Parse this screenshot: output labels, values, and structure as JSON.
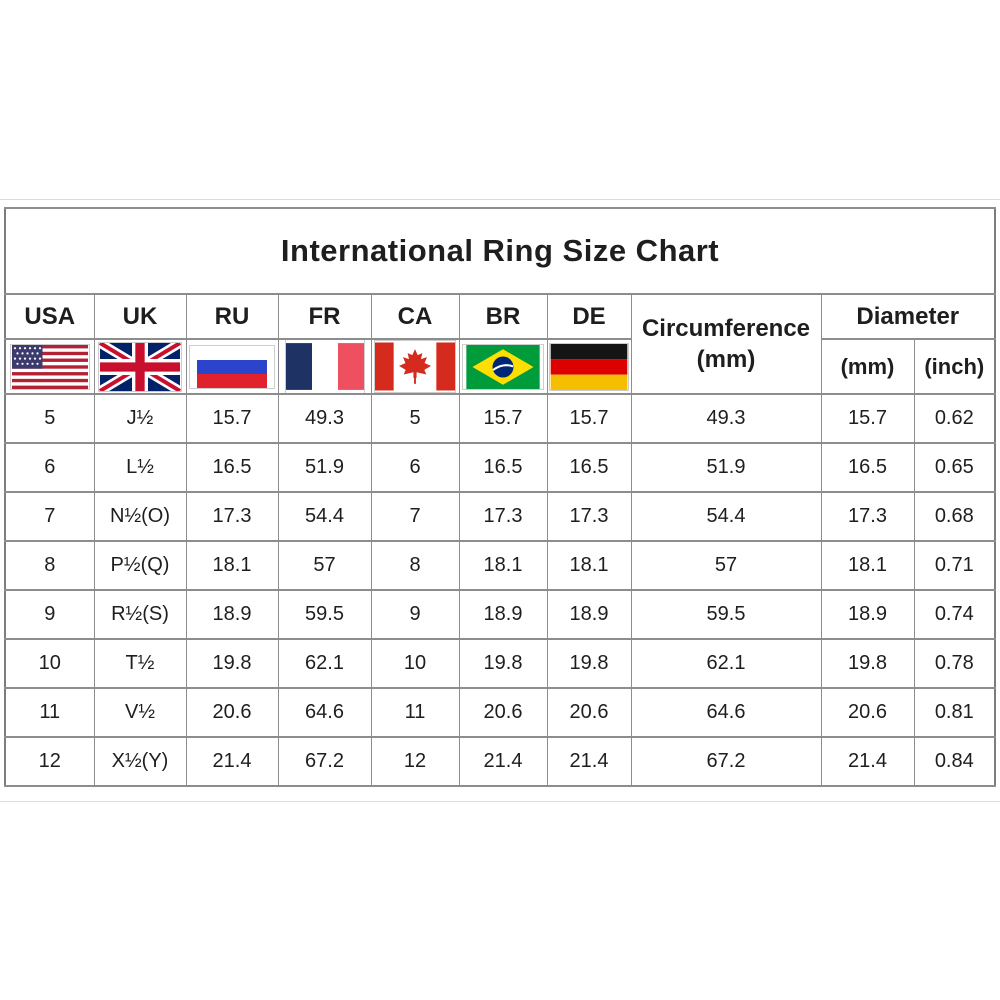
{
  "title": "International Ring Size Chart",
  "colors": {
    "background": "#ffffff",
    "table_border": "#8d8d8d",
    "text": "#1e1e1e"
  },
  "chart_data": {
    "type": "table",
    "title": "International Ring Size Chart",
    "header": {
      "countries": [
        {
          "code": "USA",
          "flag_icon": "usa-flag-icon"
        },
        {
          "code": "UK",
          "flag_icon": "uk-flag-icon"
        },
        {
          "code": "RU",
          "flag_icon": "russia-flag-icon"
        },
        {
          "code": "FR",
          "flag_icon": "france-flag-icon"
        },
        {
          "code": "CA",
          "flag_icon": "canada-flag-icon"
        },
        {
          "code": "BR",
          "flag_icon": "brazil-flag-icon"
        },
        {
          "code": "DE",
          "flag_icon": "germany-flag-icon"
        }
      ],
      "circumference_line1": "Circumference",
      "circumference_line2": "(mm)",
      "diameter": "Diameter",
      "diameter_mm": "(mm)",
      "diameter_inch": "(inch)"
    },
    "columns": [
      "USA",
      "UK",
      "RU",
      "FR",
      "CA",
      "BR",
      "DE",
      "Circumference (mm)",
      "Diameter (mm)",
      "Diameter (inch)"
    ],
    "rows": [
      [
        "5",
        "J½",
        "15.7",
        "49.3",
        "5",
        "15.7",
        "15.7",
        "49.3",
        "15.7",
        "0.62"
      ],
      [
        "6",
        "L½",
        "16.5",
        "51.9",
        "6",
        "16.5",
        "16.5",
        "51.9",
        "16.5",
        "0.65"
      ],
      [
        "7",
        "N½(O)",
        "17.3",
        "54.4",
        "7",
        "17.3",
        "17.3",
        "54.4",
        "17.3",
        "0.68"
      ],
      [
        "8",
        "P½(Q)",
        "18.1",
        "57",
        "8",
        "18.1",
        "18.1",
        "57",
        "18.1",
        "0.71"
      ],
      [
        "9",
        "R½(S)",
        "18.9",
        "59.5",
        "9",
        "18.9",
        "18.9",
        "59.5",
        "18.9",
        "0.74"
      ],
      [
        "10",
        "T½",
        "19.8",
        "62.1",
        "10",
        "19.8",
        "19.8",
        "62.1",
        "19.8",
        "0.78"
      ],
      [
        "11",
        "V½",
        "20.6",
        "64.6",
        "11",
        "20.6",
        "20.6",
        "64.6",
        "20.6",
        "0.81"
      ],
      [
        "12",
        "X½(Y)",
        "21.4",
        "67.2",
        "12",
        "21.4",
        "21.4",
        "67.2",
        "21.4",
        "0.84"
      ]
    ]
  }
}
